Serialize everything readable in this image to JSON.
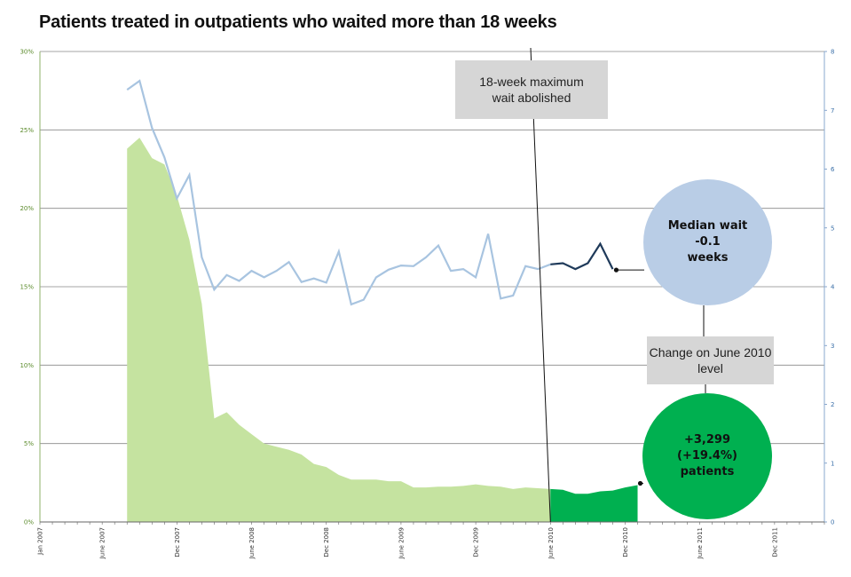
{
  "title": "Patients treated in outpatients who waited more than 18 weeks",
  "annotations": {
    "abolished": "18-week maximum wait abolished",
    "change_label": "Change on June 2010 level",
    "median_line1": "Median wait",
    "median_line2": "-0.1",
    "median_line3": "weeks",
    "patients_line1": "+3,299",
    "patients_line2": "(+19.4%)",
    "patients_line3": "patients"
  },
  "colors": {
    "area_before": "#c5e3a0",
    "area_after": "#00b050",
    "line_before": "#a8c4e0",
    "line_after": "#1f3a5a",
    "median_circle": "#b9cde6",
    "patients_circle": "#00b050",
    "grid": "#888888"
  },
  "chart_data": {
    "type": "area+line",
    "title": "Patients treated in outpatients who waited more than 18 weeks",
    "y_left": {
      "label": "",
      "ticks": [
        "0%",
        "5%",
        "10%",
        "15%",
        "20%",
        "25%",
        "30%"
      ],
      "range": [
        0,
        30
      ]
    },
    "y_right": {
      "label": "",
      "ticks": [
        "0",
        "1",
        "2",
        "3",
        "4",
        "5",
        "6",
        "7",
        "8"
      ],
      "range": [
        0,
        8
      ]
    },
    "x_ticks": [
      "Jan 2007",
      "June 2007",
      "Dec 2007",
      "June 2008",
      "Dec 2008",
      "June 2009",
      "Dec 2009",
      "June 2010",
      "Dec 2010",
      "June 2011",
      "Dec 2011"
    ],
    "x_start": "2007-01",
    "x_end": "2012-04",
    "split_at": "2010-06",
    "area_series": {
      "name": "",
      "axis": "left",
      "start": "2007-08",
      "values": [
        23.8,
        24.5,
        23.2,
        22.8,
        20.8,
        18.0,
        13.9,
        6.6,
        7.0,
        6.2,
        5.6,
        5.0,
        4.8,
        4.6,
        4.3,
        3.7,
        3.5,
        3.0,
        2.7,
        2.7,
        2.7,
        2.6,
        2.6,
        2.2,
        2.2,
        2.25,
        2.25,
        2.3,
        2.4,
        2.3,
        2.25,
        2.1,
        2.2,
        2.15,
        2.1,
        2.05,
        1.8,
        1.8,
        1.95,
        2.0,
        2.2,
        2.35
      ]
    },
    "line_series": {
      "name": "",
      "axis": "right",
      "start": "2007-08",
      "values": [
        7.35,
        7.5,
        6.7,
        6.2,
        5.5,
        5.9,
        4.5,
        3.95,
        4.2,
        4.1,
        4.27,
        4.16,
        4.27,
        4.42,
        4.08,
        4.14,
        4.07,
        4.6,
        3.7,
        3.78,
        4.16,
        4.29,
        4.36,
        4.35,
        4.5,
        4.7,
        4.27,
        4.3,
        4.16,
        4.9,
        3.8,
        3.85,
        4.35,
        4.3,
        4.38,
        4.4,
        4.3,
        4.4,
        4.73,
        4.3
      ]
    }
  }
}
